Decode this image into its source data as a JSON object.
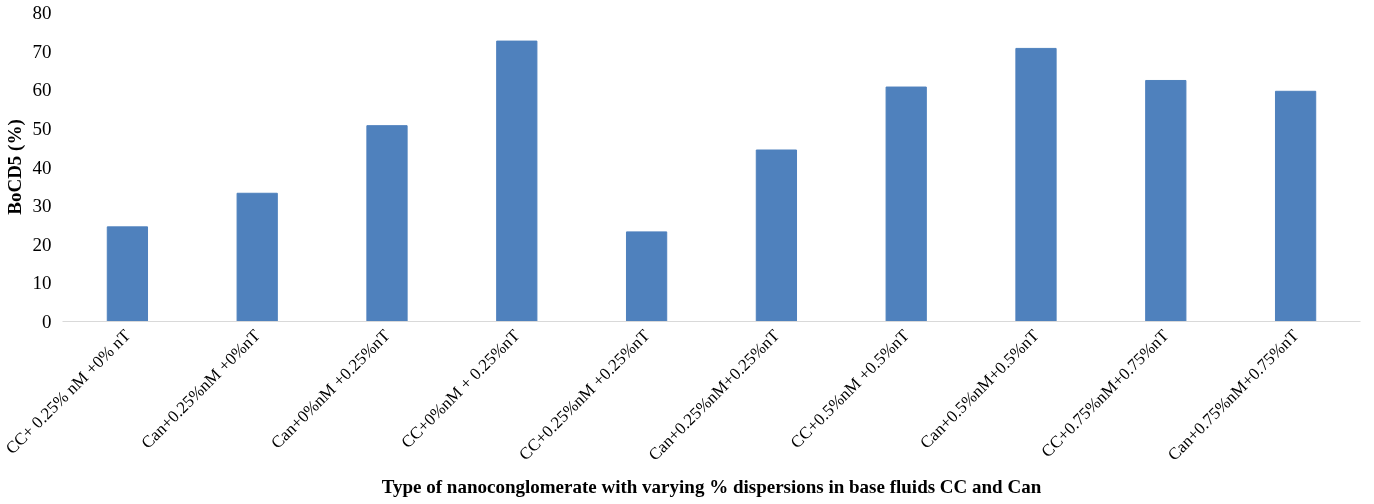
{
  "chart_data": {
    "type": "bar",
    "xlabel": "Type of nanoconglomerate with varying % dispersions in base fluids CC and Can",
    "ylabel": "BoCD5 (%)",
    "categories": [
      "CC+ 0.25% nM +0% nT",
      "Can+0.25%nM +0%nT",
      "Can+0%nM +0.25%nT",
      "CC+0%nM + 0.25%nT",
      "CC+0.25%nM +0.25%nT",
      "Can+0.25%nM+0.25%nT",
      "CC+0.5%nM +0.5%nT",
      "Can+0.5%nM+0.5%nT",
      "CC+0.75%nM+0.75%nT",
      "Can+0.75%nM+0.75%nT"
    ],
    "values": [
      24.5,
      33.2,
      50.7,
      72.6,
      23.2,
      44.4,
      60.7,
      70.7,
      62.4,
      59.6
    ],
    "color": "#4f81bd",
    "ylim": [
      0,
      80
    ],
    "yticks": [
      0,
      10,
      20,
      30,
      40,
      50,
      60,
      70,
      80
    ],
    "grid": false
  }
}
